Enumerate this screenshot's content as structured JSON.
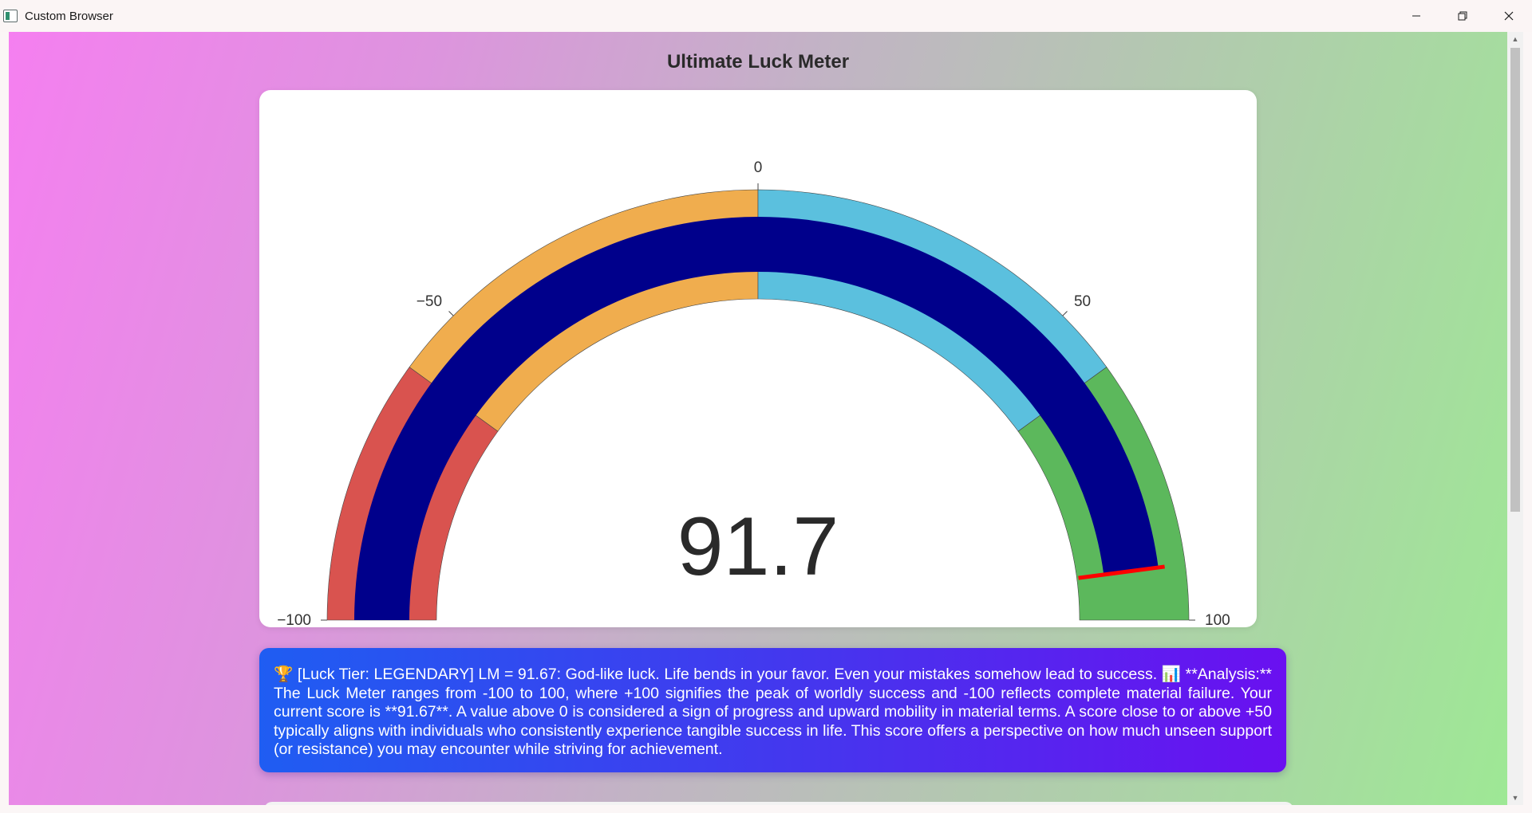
{
  "window": {
    "title": "Custom Browser",
    "icon": "app-window-icon",
    "controls": [
      "minimize-icon",
      "restore-icon",
      "close-icon"
    ]
  },
  "page": {
    "title": "Ultimate Luck Meter"
  },
  "chart_data": {
    "type": "gauge",
    "value": 91.67,
    "value_display": "91.7",
    "range": [
      -100,
      100
    ],
    "tick_labels": [
      "−100",
      "−50",
      "0",
      "50",
      "100"
    ],
    "tick_values": [
      -100,
      -50,
      0,
      50,
      100
    ],
    "bands": [
      {
        "from": -100,
        "to": -60,
        "color": "#d9534f"
      },
      {
        "from": -60,
        "to": 0,
        "color": "#f0ad4e"
      },
      {
        "from": 0,
        "to": 60,
        "color": "#5bc0de"
      },
      {
        "from": 60,
        "to": 100,
        "color": "#5cb85c"
      }
    ],
    "bar_color": "#00008b",
    "threshold": {
      "value": 91.67,
      "color": "#ff0000"
    }
  },
  "analysis": {
    "text": "🏆 [Luck Tier: LEGENDARY] LM = 91.67: God-like luck. Life bends in your favor. Even your mistakes somehow lead to success. 📊 **Analysis:** The Luck Meter ranges from -100 to 100, where +100 signifies the peak of worldly success and -100 reflects complete material failure. Your current score is **91.67**. A value above 0 is considered a sign of progress and upward mobility in material terms. A score close to or above +50 typically aligns with individuals who consistently experience tangible success in life. This score offers a perspective on how much unseen support (or resistance) you may encounter while striving for achievement."
  }
}
